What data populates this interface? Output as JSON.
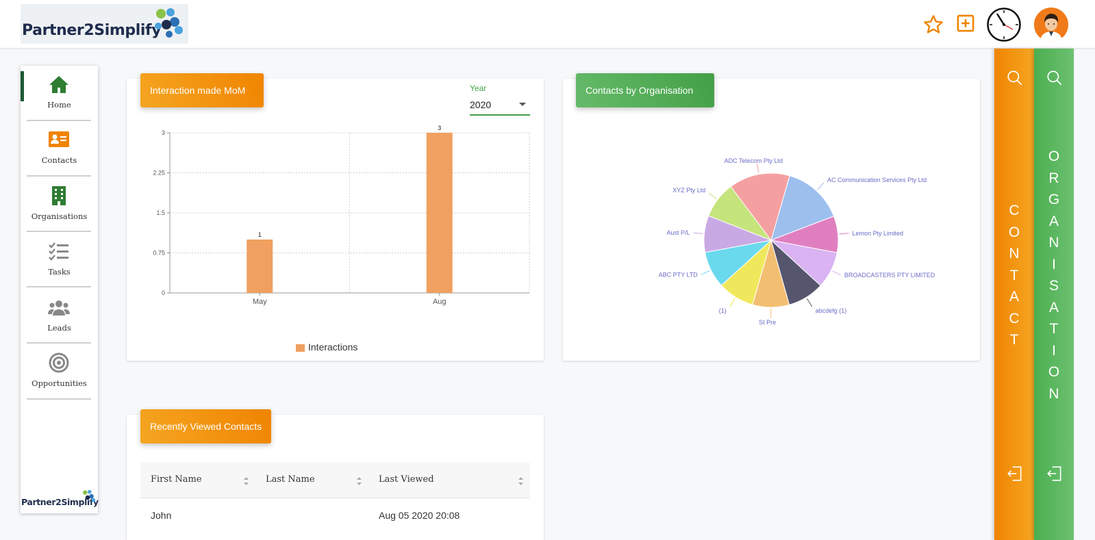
{
  "header": {
    "logo_text": "Partner2Simplify",
    "icons": [
      "star-icon",
      "add-box-icon",
      "clock-icon",
      "avatar"
    ],
    "accent": "#f08400"
  },
  "sidebar": {
    "items": [
      {
        "label": "Home",
        "icon": "home-icon",
        "color": "#2e7d32",
        "active": true
      },
      {
        "label": "Contacts",
        "icon": "contact-card-icon",
        "color": "#f08400"
      },
      {
        "label": "Organisations",
        "icon": "building-icon",
        "color": "#2e7d32"
      },
      {
        "label": "Tasks",
        "icon": "task-list-icon",
        "color": "#888888"
      },
      {
        "label": "Leads",
        "icon": "group-icon",
        "color": "#888888"
      },
      {
        "label": "Opportunities",
        "icon": "target-icon",
        "color": "#888888"
      }
    ],
    "footer_logo": "Partner2Simplify"
  },
  "interaction_card": {
    "title": "Interaction made MoM",
    "year_label": "Year",
    "year_value": "2020"
  },
  "org_card": {
    "title": "Contacts by Organisation"
  },
  "recent_card": {
    "title": "Recently Viewed Contacts",
    "columns": [
      "First Name",
      "Last Name",
      "Last Viewed"
    ],
    "rows": [
      {
        "first_name": "John",
        "last_name": "",
        "last_viewed": "Aug 05 2020 20:08"
      }
    ]
  },
  "rails": {
    "contact": {
      "letters": [
        "C",
        "O",
        "N",
        "T",
        "A",
        "C",
        "T"
      ],
      "color": "#f08400"
    },
    "organisation": {
      "letters": [
        "O",
        "R",
        "G",
        "A",
        "N",
        "I",
        "S",
        "A",
        "T",
        "I",
        "O",
        "N"
      ],
      "color": "#4caf50"
    }
  },
  "chart_data": [
    {
      "type": "bar",
      "categories": [
        "May",
        "Aug"
      ],
      "series": [
        {
          "name": "Interactions",
          "values": [
            1,
            3
          ],
          "color": "#f0a060"
        }
      ],
      "yticks": [
        "0",
        "0.75",
        "1.5",
        "2.25",
        "3"
      ],
      "ylim": [
        0,
        3
      ],
      "data_labels": [
        "1",
        "3"
      ],
      "grid": true,
      "legend": "bottom-center"
    },
    {
      "type": "pie",
      "labels": [
        "AC Communication Services Pty Ltd",
        "Lemon Pty Limited",
        "BROADCASTERS PTY LIMITED",
        "abcdefg (1)",
        "St Pre",
        "(1)",
        "ABC PTY LTD",
        "Aust P/L",
        "XYZ Pty Ltd",
        "ADC Telecom Pty Ltd"
      ],
      "values": [
        1,
        0.6,
        0.6,
        0.6,
        0.6,
        0.6,
        0.6,
        0.6,
        0.6,
        1
      ],
      "colors": [
        "#9dbfee",
        "#e07fc0",
        "#d9b3f2",
        "#55566e",
        "#f2bf72",
        "#f0e85c",
        "#6ad9ee",
        "#c9a9e4",
        "#c5e47c",
        "#f5a0a0"
      ],
      "legend": "none"
    }
  ]
}
